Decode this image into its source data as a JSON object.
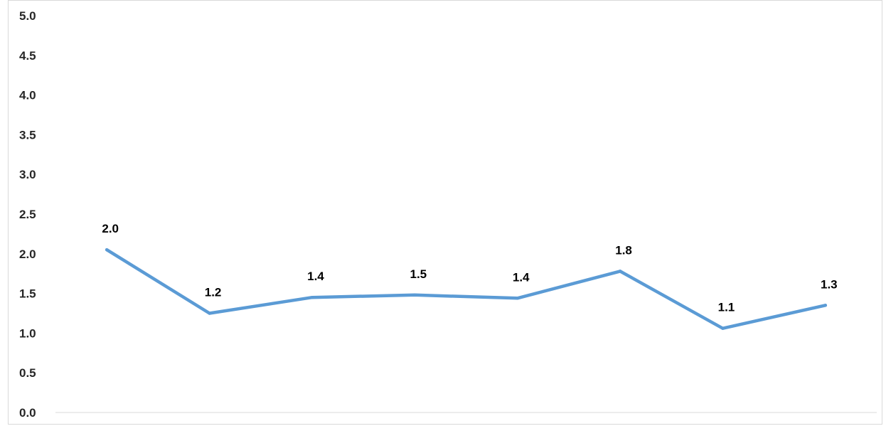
{
  "chart_data": {
    "type": "line",
    "title": "",
    "xlabel": "",
    "ylabel": "",
    "categories": [
      "",
      "",
      "",
      "",
      "",
      "",
      "",
      ""
    ],
    "series": [
      {
        "values": [
          2.05,
          1.25,
          1.45,
          1.48,
          1.44,
          1.78,
          1.06,
          1.35
        ],
        "color": "#5b9bd5"
      }
    ],
    "data_labels": [
      "2.0",
      "1.2",
      "1.4",
      "1.5",
      "1.4",
      "1.8",
      "1.1",
      "1.3"
    ],
    "ylim": [
      0,
      5
    ],
    "y_ticks": [
      "0.0",
      "0.5",
      "1.0",
      "1.5",
      "2.0",
      "2.5",
      "3.0",
      "3.5",
      "4.0",
      "4.5",
      "5.0"
    ],
    "grid": false,
    "legend": "none",
    "axis_color": "#d9d9d9"
  }
}
